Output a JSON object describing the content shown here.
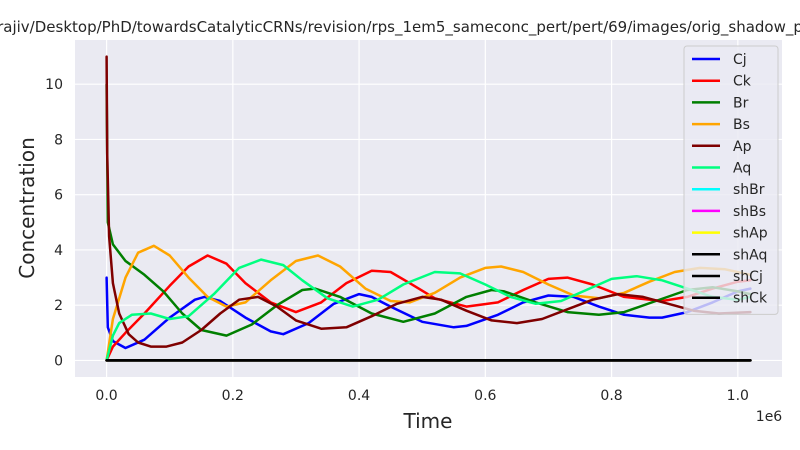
{
  "chart_data": {
    "type": "line",
    "title": "rajiv/Desktop/PhD/towardsCatalyticCRNs/revision/rps_1em5_sameconc_pert/pert/69/images/orig_shadow_p",
    "xlabel": "Time",
    "ylabel": "Concentration",
    "x_offset_label": "1e6",
    "xlim": [
      -0.05,
      1.07
    ],
    "ylim": [
      -0.6,
      11.6
    ],
    "xticks": [
      0.0,
      0.2,
      0.4,
      0.6,
      0.8,
      1.0
    ],
    "xtick_labels": [
      "0.0",
      "0.2",
      "0.4",
      "0.6",
      "0.8",
      "1.0"
    ],
    "yticks": [
      0,
      2,
      4,
      6,
      8,
      10
    ],
    "ytick_labels": [
      "0",
      "2",
      "4",
      "6",
      "8",
      "10"
    ],
    "grid": true,
    "legend_position": "upper right",
    "series": [
      {
        "name": "Cj",
        "color": "#0000ff",
        "x": [
          0,
          0.002,
          0.01,
          0.03,
          0.06,
          0.1,
          0.14,
          0.155,
          0.18,
          0.22,
          0.26,
          0.28,
          0.32,
          0.36,
          0.4,
          0.42,
          0.45,
          0.5,
          0.55,
          0.57,
          0.62,
          0.66,
          0.7,
          0.74,
          0.78,
          0.82,
          0.86,
          0.88,
          0.92,
          0.96,
          1.0,
          1.02
        ],
        "y": [
          3.0,
          1.2,
          0.7,
          0.45,
          0.75,
          1.55,
          2.2,
          2.3,
          2.15,
          1.55,
          1.05,
          0.95,
          1.35,
          2.05,
          2.4,
          2.3,
          1.95,
          1.4,
          1.2,
          1.25,
          1.65,
          2.1,
          2.35,
          2.3,
          1.95,
          1.65,
          1.55,
          1.55,
          1.75,
          2.1,
          2.5,
          2.6
        ]
      },
      {
        "name": "Ck",
        "color": "#ff0000",
        "x": [
          0,
          0.01,
          0.03,
          0.06,
          0.1,
          0.13,
          0.16,
          0.19,
          0.22,
          0.26,
          0.3,
          0.34,
          0.38,
          0.42,
          0.45,
          0.48,
          0.52,
          0.57,
          0.62,
          0.66,
          0.7,
          0.73,
          0.77,
          0.82,
          0.88,
          0.92,
          0.96,
          1.0,
          1.02
        ],
        "y": [
          0,
          0.5,
          1.0,
          1.7,
          2.7,
          3.4,
          3.8,
          3.5,
          2.8,
          2.1,
          1.75,
          2.1,
          2.8,
          3.25,
          3.2,
          2.8,
          2.25,
          1.95,
          2.1,
          2.55,
          2.95,
          3.0,
          2.75,
          2.3,
          2.15,
          2.3,
          2.6,
          2.85,
          2.9
        ]
      },
      {
        "name": "Br",
        "color": "#007f00",
        "x": [
          0,
          0.002,
          0.01,
          0.03,
          0.06,
          0.09,
          0.12,
          0.15,
          0.19,
          0.23,
          0.27,
          0.31,
          0.33,
          0.37,
          0.42,
          0.47,
          0.52,
          0.57,
          0.61,
          0.63,
          0.68,
          0.73,
          0.78,
          0.82,
          0.87,
          0.92,
          0.96,
          1.0,
          1.02
        ],
        "y": [
          10.0,
          5.0,
          4.2,
          3.6,
          3.1,
          2.5,
          1.7,
          1.1,
          0.9,
          1.3,
          2.0,
          2.55,
          2.6,
          2.3,
          1.7,
          1.4,
          1.7,
          2.3,
          2.55,
          2.5,
          2.1,
          1.75,
          1.65,
          1.75,
          2.15,
          2.55,
          2.65,
          2.5,
          2.4
        ]
      },
      {
        "name": "Bs",
        "color": "#ffa500",
        "x": [
          0,
          0.01,
          0.03,
          0.05,
          0.075,
          0.1,
          0.13,
          0.16,
          0.19,
          0.22,
          0.26,
          0.3,
          0.335,
          0.37,
          0.41,
          0.45,
          0.48,
          0.52,
          0.56,
          0.6,
          0.625,
          0.66,
          0.7,
          0.74,
          0.78,
          0.82,
          0.86,
          0.9,
          0.94,
          0.98,
          1.02
        ],
        "y": [
          0,
          1.5,
          3.0,
          3.9,
          4.15,
          3.8,
          3.0,
          2.3,
          1.95,
          2.1,
          2.9,
          3.6,
          3.8,
          3.4,
          2.6,
          2.15,
          2.1,
          2.45,
          3.0,
          3.35,
          3.4,
          3.2,
          2.75,
          2.35,
          2.25,
          2.45,
          2.85,
          3.2,
          3.35,
          3.3,
          3.1
        ]
      },
      {
        "name": "Ap",
        "color": "#7f0000",
        "x": [
          0,
          0.001,
          0.004,
          0.01,
          0.02,
          0.035,
          0.05,
          0.07,
          0.095,
          0.12,
          0.15,
          0.18,
          0.21,
          0.24,
          0.27,
          0.3,
          0.34,
          0.38,
          0.42,
          0.46,
          0.5,
          0.53,
          0.57,
          0.61,
          0.65,
          0.69,
          0.73,
          0.77,
          0.81,
          0.85,
          0.89,
          0.93,
          0.97,
          1.02
        ],
        "y": [
          11.0,
          7.5,
          4.5,
          2.8,
          1.7,
          0.95,
          0.65,
          0.5,
          0.5,
          0.65,
          1.1,
          1.7,
          2.2,
          2.3,
          1.95,
          1.45,
          1.15,
          1.2,
          1.6,
          2.05,
          2.3,
          2.2,
          1.8,
          1.45,
          1.35,
          1.5,
          1.85,
          2.2,
          2.4,
          2.3,
          2.05,
          1.8,
          1.7,
          1.75
        ]
      },
      {
        "name": "Aq",
        "color": "#00ff7f",
        "x": [
          0,
          0.01,
          0.02,
          0.04,
          0.07,
          0.1,
          0.13,
          0.17,
          0.21,
          0.245,
          0.28,
          0.31,
          0.35,
          0.39,
          0.43,
          0.47,
          0.52,
          0.56,
          0.6,
          0.64,
          0.68,
          0.72,
          0.76,
          0.8,
          0.84,
          0.88,
          0.92,
          0.96,
          1.0,
          1.02
        ],
        "y": [
          0,
          0.9,
          1.35,
          1.65,
          1.7,
          1.5,
          1.6,
          2.4,
          3.35,
          3.65,
          3.45,
          2.9,
          2.25,
          1.95,
          2.2,
          2.75,
          3.2,
          3.15,
          2.75,
          2.3,
          2.05,
          2.15,
          2.55,
          2.95,
          3.05,
          2.9,
          2.6,
          2.3,
          2.2,
          2.3
        ]
      },
      {
        "name": "shBr",
        "color": "#00ffff",
        "x": [
          0,
          1.02
        ],
        "y": [
          0,
          0
        ]
      },
      {
        "name": "shBs",
        "color": "#ff00ff",
        "x": [
          0,
          1.02
        ],
        "y": [
          0,
          0
        ]
      },
      {
        "name": "shAp",
        "color": "#ffff00",
        "x": [
          0,
          1.02
        ],
        "y": [
          0,
          0
        ]
      },
      {
        "name": "shAq",
        "color": "#000000",
        "x": [
          0,
          1.02
        ],
        "y": [
          0,
          0
        ]
      },
      {
        "name": "shCj",
        "color": "#000000",
        "x": [
          0,
          1.02
        ],
        "y": [
          0,
          0
        ]
      },
      {
        "name": "shCk",
        "color": "#000000",
        "x": [
          0,
          1.02
        ],
        "y": [
          0,
          0
        ]
      }
    ]
  }
}
